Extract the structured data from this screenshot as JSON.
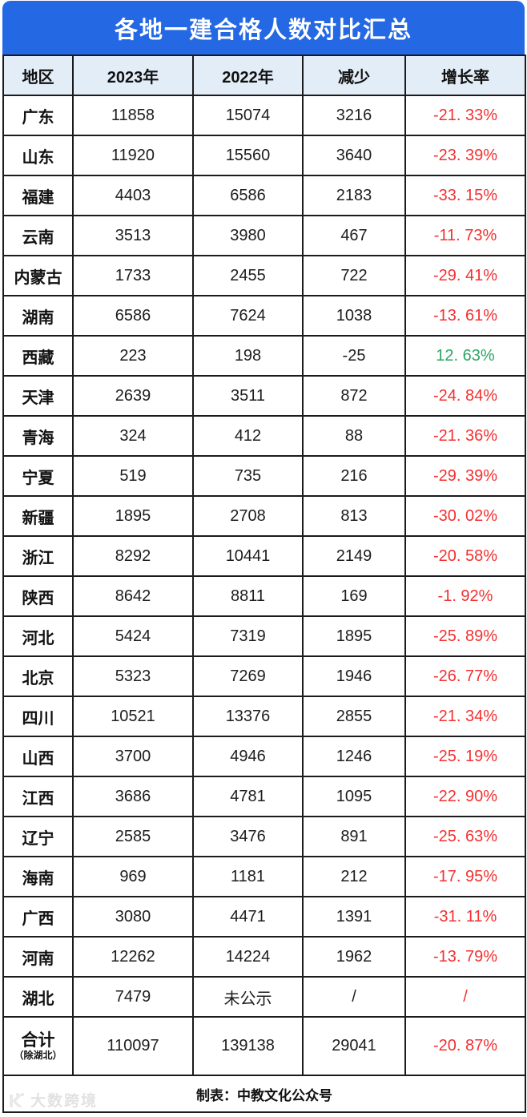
{
  "title": "各地一建合格人数对比汇总",
  "columns": [
    "地区",
    "2023年",
    "2022年",
    "减少",
    "增长率"
  ],
  "colors": {
    "accent_blue": "#2468E4",
    "header_bg": "#E3EDF8",
    "negative_red": "#F43030",
    "positive_green": "#2AA563",
    "border": "#1B1B1B"
  },
  "table": {
    "rows": [
      {
        "region": "广东",
        "y2023": "11858",
        "y2022": "15074",
        "decrease": "3216",
        "growth": "-21. 33%",
        "trend": "down"
      },
      {
        "region": "山东",
        "y2023": "11920",
        "y2022": "15560",
        "decrease": "3640",
        "growth": "-23. 39%",
        "trend": "down"
      },
      {
        "region": "福建",
        "y2023": "4403",
        "y2022": "6586",
        "decrease": "2183",
        "growth": "-33. 15%",
        "trend": "down"
      },
      {
        "region": "云南",
        "y2023": "3513",
        "y2022": "3980",
        "decrease": "467",
        "growth": "-11. 73%",
        "trend": "down"
      },
      {
        "region": "内蒙古",
        "y2023": "1733",
        "y2022": "2455",
        "decrease": "722",
        "growth": "-29. 41%",
        "trend": "down"
      },
      {
        "region": "湖南",
        "y2023": "6586",
        "y2022": "7624",
        "decrease": "1038",
        "growth": "-13. 61%",
        "trend": "down"
      },
      {
        "region": "西藏",
        "y2023": "223",
        "y2022": "198",
        "decrease": "-25",
        "growth": "12. 63%",
        "trend": "up"
      },
      {
        "region": "天津",
        "y2023": "2639",
        "y2022": "3511",
        "decrease": "872",
        "growth": "-24. 84%",
        "trend": "down"
      },
      {
        "region": "青海",
        "y2023": "324",
        "y2022": "412",
        "decrease": "88",
        "growth": "-21. 36%",
        "trend": "down"
      },
      {
        "region": "宁夏",
        "y2023": "519",
        "y2022": "735",
        "decrease": "216",
        "growth": "-29. 39%",
        "trend": "down"
      },
      {
        "region": "新疆",
        "y2023": "1895",
        "y2022": "2708",
        "decrease": "813",
        "growth": "-30. 02%",
        "trend": "down"
      },
      {
        "region": "浙江",
        "y2023": "8292",
        "y2022": "10441",
        "decrease": "2149",
        "growth": "-20. 58%",
        "trend": "down"
      },
      {
        "region": "陕西",
        "y2023": "8642",
        "y2022": "8811",
        "decrease": "169",
        "growth": "-1. 92%",
        "trend": "down"
      },
      {
        "region": "河北",
        "y2023": "5424",
        "y2022": "7319",
        "decrease": "1895",
        "growth": "-25. 89%",
        "trend": "down"
      },
      {
        "region": "北京",
        "y2023": "5323",
        "y2022": "7269",
        "decrease": "1946",
        "growth": "-26. 77%",
        "trend": "down"
      },
      {
        "region": "四川",
        "y2023": "10521",
        "y2022": "13376",
        "decrease": "2855",
        "growth": "-21. 34%",
        "trend": "down"
      },
      {
        "region": "山西",
        "y2023": "3700",
        "y2022": "4946",
        "decrease": "1246",
        "growth": "-25. 19%",
        "trend": "down"
      },
      {
        "region": "江西",
        "y2023": "3686",
        "y2022": "4781",
        "decrease": "1095",
        "growth": "-22. 90%",
        "trend": "down"
      },
      {
        "region": "辽宁",
        "y2023": "2585",
        "y2022": "3476",
        "decrease": "891",
        "growth": "-25. 63%",
        "trend": "down"
      },
      {
        "region": "海南",
        "y2023": "969",
        "y2022": "1181",
        "decrease": "212",
        "growth": "-17. 95%",
        "trend": "down"
      },
      {
        "region": "广西",
        "y2023": "3080",
        "y2022": "4471",
        "decrease": "1391",
        "growth": "-31. 11%",
        "trend": "down"
      },
      {
        "region": "河南",
        "y2023": "12262",
        "y2022": "14224",
        "decrease": "1962",
        "growth": "-13. 79%",
        "trend": "down"
      },
      {
        "region": "湖北",
        "y2023": "7479",
        "y2022": "未公示",
        "decrease": "/",
        "growth": "/",
        "trend": "down"
      },
      {
        "region": "合计",
        "region_sub": "（除湖北）",
        "is_total": true,
        "y2023": "110097",
        "y2022": "139138",
        "decrease": "29041",
        "growth": "-20. 87%",
        "trend": "down"
      }
    ]
  },
  "footer": {
    "credit": "制表：中教文化公众号"
  },
  "watermark": {
    "text": "大数跨境"
  }
}
